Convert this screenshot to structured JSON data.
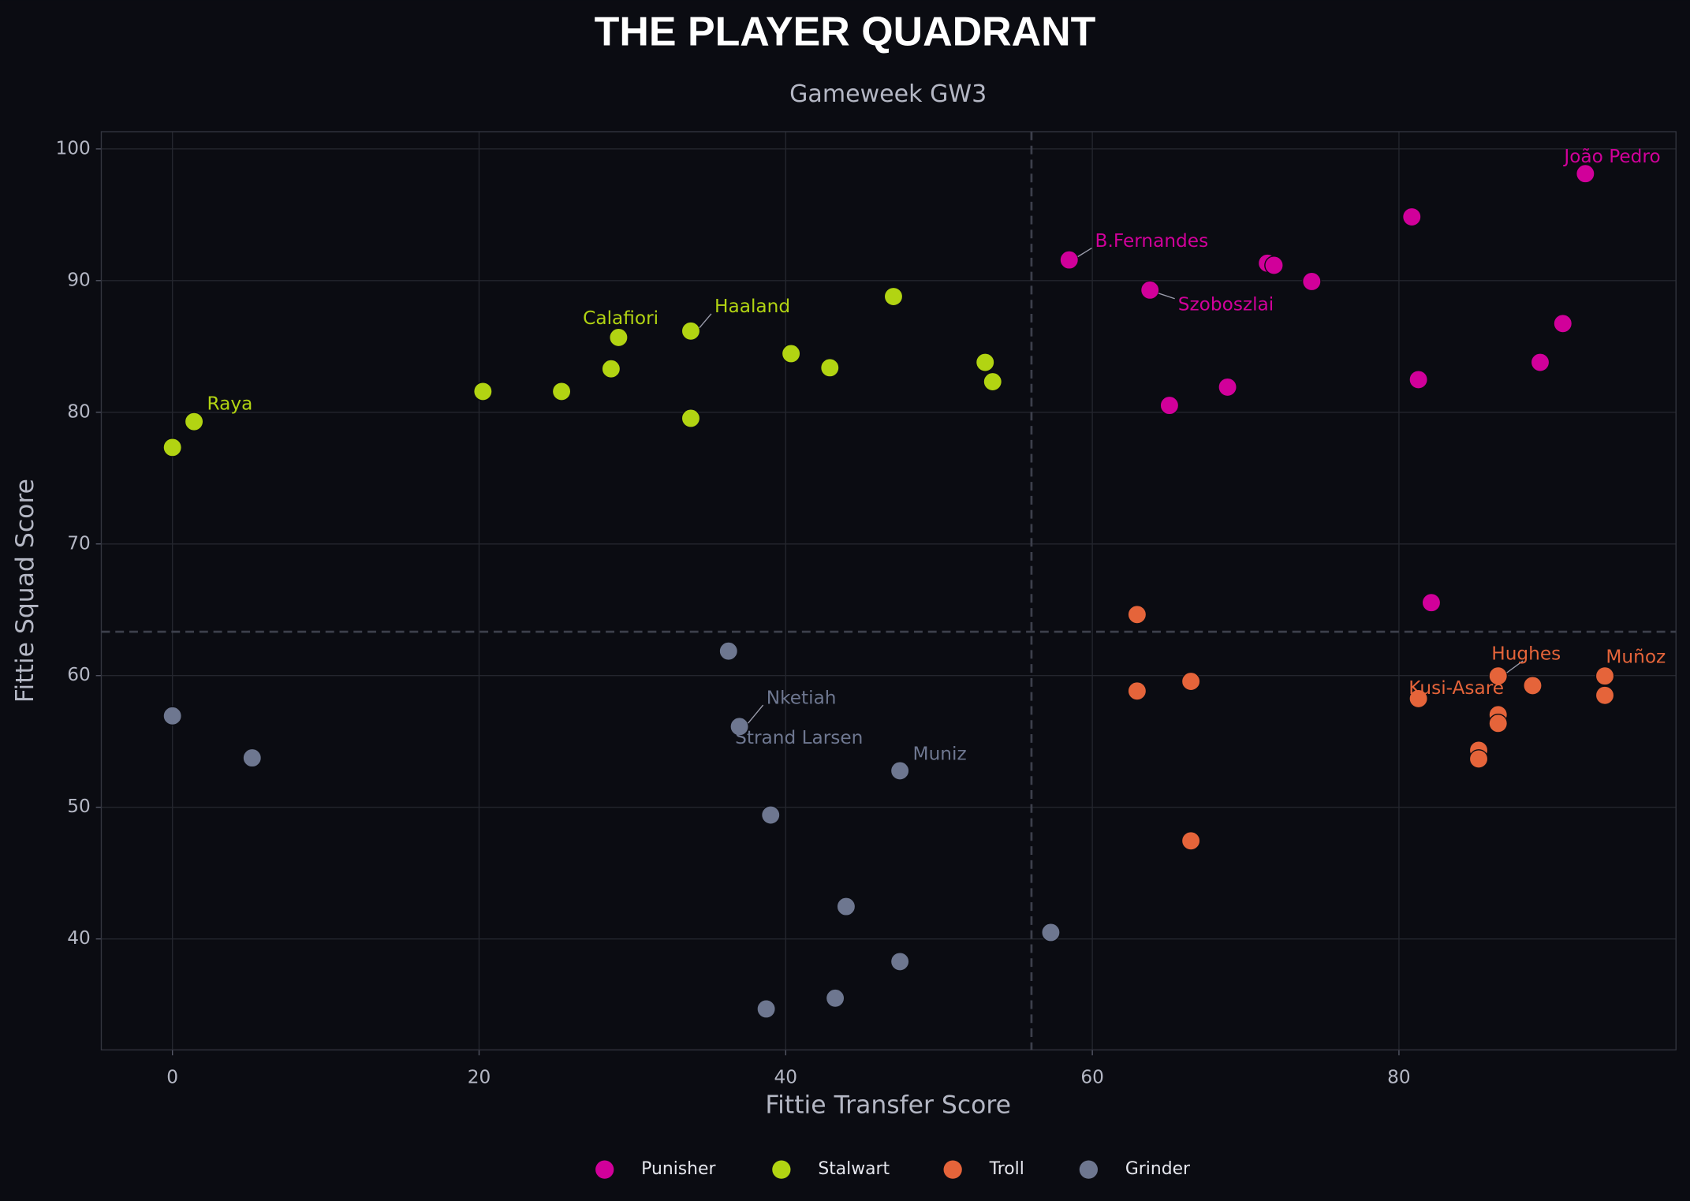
{
  "chart_data": {
    "type": "scatter",
    "title": "THE PLAYER QUADRANT",
    "subtitle": "Gameweek GW3",
    "x_label": "Fittie Transfer Score",
    "y_label": "Fittie Squad Score",
    "xlim": [
      -4.64,
      98.07
    ],
    "ylim": [
      31.57,
      101.31
    ],
    "xticks": [
      0,
      20,
      40,
      60,
      80
    ],
    "yticks": [
      40,
      50,
      60,
      70,
      80,
      90,
      100
    ],
    "grid": true,
    "x_divider": 56.03,
    "y_divider": 63.33,
    "legend": "bottom",
    "series": [
      {
        "name": "Punisher",
        "color": "#d1009a",
        "x": [
          92.16,
          80.84,
          58.49,
          71.42,
          71.85,
          63.76,
          74.31,
          90.69,
          89.21,
          81.27,
          68.82,
          65.03,
          82.11
        ],
        "y": [
          98.12,
          94.84,
          91.57,
          91.32,
          91.16,
          89.28,
          89.93,
          86.74,
          83.79,
          82.48,
          81.91,
          80.52,
          65.54
        ],
        "labels": [
          "João Pedro",
          null,
          "B.Fernandes",
          null,
          null,
          "Szoboszlai",
          null,
          null,
          null,
          null,
          null,
          null,
          null
        ]
      },
      {
        "name": "Stalwart",
        "color": "#b2d412",
        "x": [
          47.03,
          33.81,
          29.1,
          40.35,
          42.88,
          53.01,
          28.61,
          53.5,
          20.25,
          25.38,
          33.81,
          1.41,
          0
        ],
        "y": [
          88.79,
          86.17,
          85.68,
          84.45,
          83.38,
          83.79,
          83.3,
          82.32,
          81.58,
          81.58,
          79.54,
          79.29,
          77.33
        ],
        "labels": [
          null,
          "Haaland",
          "Calafiori",
          null,
          null,
          null,
          null,
          null,
          null,
          null,
          null,
          "Raya",
          null
        ]
      },
      {
        "name": "Troll",
        "color": "#e5643a",
        "x": [
          62.92,
          62.92,
          66.43,
          86.47,
          93.43,
          88.72,
          81.27,
          93.43,
          86.47,
          86.47,
          85.2,
          85.2,
          66.43
        ],
        "y": [
          64.64,
          58.83,
          59.56,
          59.97,
          59.97,
          59.24,
          58.25,
          58.5,
          57.03,
          56.37,
          54.33,
          53.67,
          47.45
        ],
        "labels": [
          null,
          null,
          null,
          "Hughes",
          "Muñoz",
          null,
          "Kusi-Asare",
          null,
          null,
          null,
          null,
          null,
          null
        ]
      },
      {
        "name": "Grinder",
        "color": "#6e7790",
        "x": [
          36.27,
          0,
          36.98,
          36.98,
          5.2,
          47.45,
          39.02,
          43.94,
          57.29,
          47.45,
          43.23,
          38.73
        ],
        "y": [
          61.86,
          56.94,
          56.13,
          56.13,
          53.75,
          52.77,
          49.41,
          42.46,
          40.49,
          38.28,
          35.5,
          34.68
        ],
        "labels": [
          null,
          null,
          "Nketiah",
          "Strand Larsen",
          null,
          "Muniz",
          null,
          null,
          null,
          null,
          null,
          null
        ]
      }
    ]
  }
}
